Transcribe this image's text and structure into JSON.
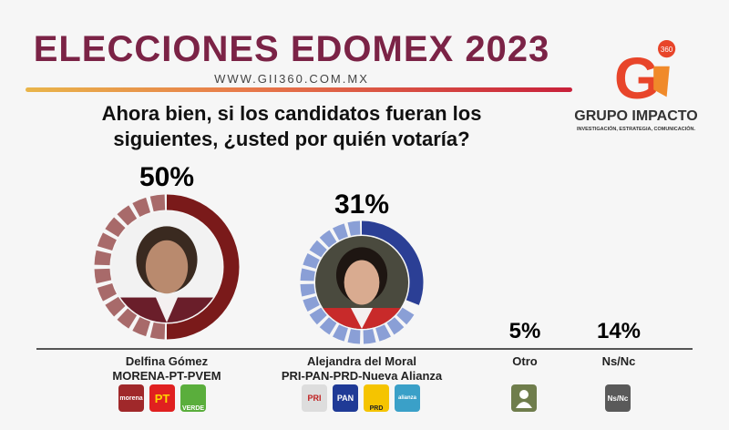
{
  "header": {
    "title": "ELECCIONES EDOMEX 2023",
    "url": "WWW.GII360.COM.MX"
  },
  "question": "Ahora bien, si los candidatos fueran los siguientes, ¿usted por quién votaría?",
  "logo": {
    "mark": "Gi",
    "badge": "360",
    "name": "GRUPO IMPACTO",
    "tagline": "INVESTIGACIÓN, ESTRATEGIA, COMUNICACIÓN."
  },
  "chart_data": {
    "type": "donut",
    "title": "",
    "categories": [
      "Delfina Gómez",
      "Alejandra del Moral",
      "Otro",
      "Ns/Nc"
    ],
    "values": [
      50,
      31,
      5,
      14
    ],
    "labels": [
      "50%",
      "31%",
      "5%",
      "14%"
    ],
    "colors": [
      "#7a1a1a",
      "#2b3f95",
      "#6f7d4c",
      "#555555"
    ]
  },
  "candidates": [
    {
      "name": "Delfina Gómez",
      "coalition": "MORENA-PT-PVEM",
      "parties": [
        "morena",
        "PT",
        "VERDE"
      ]
    },
    {
      "name": "Alejandra del Moral",
      "coalition": "PRI-PAN-PRD-Nueva Alianza",
      "parties": [
        "PRI",
        "PAN",
        "PRD",
        "alianza"
      ]
    },
    {
      "name": "Otro"
    },
    {
      "name": "Ns/Nc",
      "badge": "Ns/Nc"
    }
  ]
}
